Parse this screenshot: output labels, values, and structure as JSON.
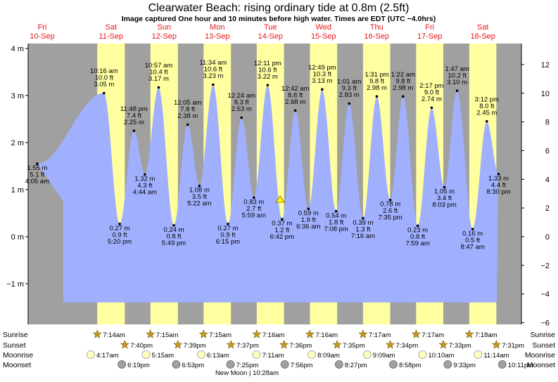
{
  "title": "Clearwater Beach: rising  ordinary tide at 0.8m (2.5ft)",
  "subtitle": "Image captured One hour and 10 minutes before high water. Times are EDT (UTC −4.0hrs)",
  "colors": {
    "night": "#a0a0a0",
    "day": "#ffffa0",
    "water": "#a0b0ff",
    "day_label": "#e8161b",
    "sun_icon": "#c39a20",
    "moonrise_icon": "#ffffc0",
    "moonset_icon": "#a0a0a0",
    "marker": "#ffff00"
  },
  "days": [
    {
      "dow": "Fri",
      "date": "10-Sep"
    },
    {
      "dow": "Sat",
      "date": "11-Sep"
    },
    {
      "dow": "Sun",
      "date": "12-Sep"
    },
    {
      "dow": "Mon",
      "date": "13-Sep"
    },
    {
      "dow": "Tue",
      "date": "14-Sep"
    },
    {
      "dow": "Wed",
      "date": "15-Sep"
    },
    {
      "dow": "Thu",
      "date": "16-Sep"
    },
    {
      "dow": "Fri",
      "date": "17-Sep"
    },
    {
      "dow": "Sat",
      "date": "18-Sep"
    }
  ],
  "row_labels": [
    "Sunrise",
    "Sunset",
    "Moonrise",
    "Moonset"
  ],
  "sunrise": [
    "7:14am",
    "7:15am",
    "7:15am",
    "7:16am",
    "7:16am",
    "7:17am",
    "7:17am",
    "7:18am"
  ],
  "sunset": [
    "7:40pm",
    "7:39pm",
    "7:37pm",
    "7:36pm",
    "7:35pm",
    "7:34pm",
    "7:33pm",
    "7:31pm"
  ],
  "moonrise": [
    "4:17am",
    "5:15am",
    "6:13am",
    "7:11am",
    "8:09am",
    "9:09am",
    "10:10am",
    "11:14am"
  ],
  "moonset": [
    "6:19pm",
    "6:53pm",
    "7:25pm",
    "7:56pm",
    "8:27pm",
    "8:58pm",
    "9:33pm",
    "10:11pm"
  ],
  "moon_phase": "New Moon | 10:28am",
  "chart_data": {
    "type": "area",
    "title": "Clearwater Beach: rising  ordinary tide at 0.8m (2.5ft)",
    "y_left_unit": "m",
    "y_right_unit": "ft",
    "ylim_m": [
      -1.45,
      4.2
    ],
    "left_ticks": [
      "4 m",
      "3 m",
      "2 m",
      "1 m",
      "0 m",
      "−1 m"
    ],
    "right_ticks": [
      "12 ft",
      "10 ft",
      "8 ft",
      "6 ft",
      "4 ft",
      "2 ft",
      "0 ft",
      "−2 ft",
      "−4 ft",
      "−6 ft"
    ],
    "current_level_m": 0.8,
    "tides": [
      {
        "time": "4:05 am",
        "m": 1.55,
        "ft": "5.1 ft",
        "height": "1.55 m",
        "day": "10-Sep"
      },
      {
        "time": "10:16 am",
        "m": 3.05,
        "ft": "10.0 ft",
        "height": "3.05 m",
        "day": "11-Sep"
      },
      {
        "time": "5:20 pm",
        "m": 0.27,
        "ft": "0.9 ft",
        "height": "0.27 m",
        "day": "11-Sep"
      },
      {
        "time": "11:48 pm",
        "m": 2.25,
        "ft": "7.4 ft",
        "height": "2.25 m",
        "day": "11-Sep"
      },
      {
        "time": "4:44 am",
        "m": 1.32,
        "ft": "4.3 ft",
        "height": "1.32 m",
        "day": "12-Sep"
      },
      {
        "time": "10:57 am",
        "m": 3.17,
        "ft": "10.4 ft",
        "height": "3.17 m",
        "day": "12-Sep"
      },
      {
        "time": "5:49 pm",
        "m": 0.24,
        "ft": "0.8 ft",
        "height": "0.24 m",
        "day": "12-Sep"
      },
      {
        "time": "12:05 am",
        "m": 2.38,
        "ft": "7.8 ft",
        "height": "2.38 m",
        "day": "13-Sep"
      },
      {
        "time": "5:22 am",
        "m": 1.08,
        "ft": "3.5 ft",
        "height": "1.08 m",
        "day": "13-Sep"
      },
      {
        "time": "11:34 am",
        "m": 3.23,
        "ft": "10.6 ft",
        "height": "3.23 m",
        "day": "13-Sep"
      },
      {
        "time": "6:15 pm",
        "m": 0.27,
        "ft": "0.9 ft",
        "height": "0.27 m",
        "day": "13-Sep"
      },
      {
        "time": "12:24 am",
        "m": 2.53,
        "ft": "8.3 ft",
        "height": "2.53 m",
        "day": "14-Sep"
      },
      {
        "time": "5:59 am",
        "m": 0.83,
        "ft": "2.7 ft",
        "height": "0.83 m",
        "day": "14-Sep"
      },
      {
        "time": "12:11 pm",
        "m": 3.22,
        "ft": "10.6 ft",
        "height": "3.22 m",
        "day": "14-Sep"
      },
      {
        "time": "6:42 pm",
        "m": 0.37,
        "ft": "1.2 ft",
        "height": "0.37 m",
        "day": "14-Sep"
      },
      {
        "time": "12:42 am",
        "m": 2.68,
        "ft": "8.8 ft",
        "height": "2.68 m",
        "day": "15-Sep"
      },
      {
        "time": "6:36 am",
        "m": 0.59,
        "ft": "1.9 ft",
        "height": "0.59 m",
        "day": "15-Sep"
      },
      {
        "time": "12:49 pm",
        "m": 3.13,
        "ft": "10.3 ft",
        "height": "3.13 m",
        "day": "15-Sep"
      },
      {
        "time": "7:08 pm",
        "m": 0.54,
        "ft": "1.8 ft",
        "height": "0.54 m",
        "day": "15-Sep"
      },
      {
        "time": "1:01 am",
        "m": 2.83,
        "ft": "9.3 ft",
        "height": "2.83 m",
        "day": "16-Sep"
      },
      {
        "time": "7:16 am",
        "m": 0.39,
        "ft": "1.3 ft",
        "height": "0.39 m",
        "day": "16-Sep"
      },
      {
        "time": "1:31 pm",
        "m": 2.98,
        "ft": "9.8 ft",
        "height": "2.98 m",
        "day": "16-Sep"
      },
      {
        "time": "7:35 pm",
        "m": 0.78,
        "ft": "2.6 ft",
        "height": "0.78 m",
        "day": "16-Sep"
      },
      {
        "time": "1:22 am",
        "m": 2.98,
        "ft": "9.8 ft",
        "height": "2.98 m",
        "day": "17-Sep"
      },
      {
        "time": "7:59 am",
        "m": 0.23,
        "ft": "0.8 ft",
        "height": "0.23 m",
        "day": "17-Sep"
      },
      {
        "time": "2:17 pm",
        "m": 2.74,
        "ft": "9.0 ft",
        "height": "2.74 m",
        "day": "17-Sep"
      },
      {
        "time": "8:03 pm",
        "m": 1.05,
        "ft": "3.4 ft",
        "height": "1.05 m",
        "day": "17-Sep"
      },
      {
        "time": "1:47 am",
        "m": 3.1,
        "ft": "10.2 ft",
        "height": "3.10 m",
        "day": "18-Sep"
      },
      {
        "time": "8:47 am",
        "m": 0.16,
        "ft": "0.5 ft",
        "height": "0.16 m",
        "day": "18-Sep"
      },
      {
        "time": "3:12 pm",
        "m": 2.45,
        "ft": "8.0 ft",
        "height": "2.45 m",
        "day": "18-Sep"
      },
      {
        "time": "8:30 pm",
        "m": 1.33,
        "ft": "4.4 ft",
        "height": "1.33 m",
        "day": "18-Sep"
      }
    ]
  }
}
